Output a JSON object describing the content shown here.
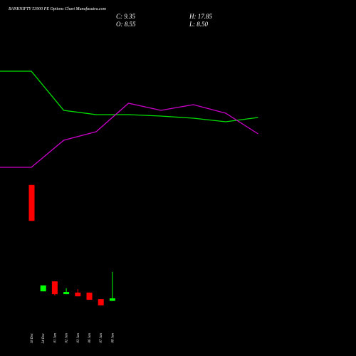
{
  "chart_data": [
    {
      "type": "candlestick",
      "title": "BANKNIFTY 53900 PE Options Chart Munafasutra.com",
      "annotations": [
        "C: 9.35",
        "H: 17.85",
        "O: 8.55",
        "L: 8.50"
      ],
      "categories": [
        "18 Dec",
        "24 Dec",
        "01 Jan",
        "02 Jan",
        "03 Jan",
        "06 Jan",
        "07 Jan",
        "08 Jan"
      ],
      "open": [
        45.7,
        11.6,
        14.8,
        10.7,
        11.2,
        11.2,
        9.1,
        8.55
      ],
      "high": [
        45.7,
        13.5,
        14.8,
        12.6,
        12.3,
        11.2,
        9.1,
        17.85
      ],
      "low": [
        34.2,
        11.6,
        10.3,
        10.7,
        10.0,
        8.9,
        7.1,
        8.5
      ],
      "close": [
        34.2,
        13.5,
        10.7,
        11.4,
        10.0,
        8.9,
        7.1,
        9.35
      ],
      "up_color": "#00ff00",
      "down_color": "#ff0000",
      "ylim": [
        0,
        105
      ]
    },
    {
      "type": "line",
      "series": [
        {
          "name": "Green line",
          "color": "#00e000",
          "values": [
            400,
            400,
            345,
            339,
            339,
            337,
            334,
            329,
            335
          ]
        },
        {
          "name": "Magenta line",
          "color": "#cc00cc",
          "values": [
            265,
            265,
            303,
            315,
            355,
            345,
            353,
            341,
            312
          ]
        }
      ],
      "ylim": [
        0,
        500
      ]
    }
  ]
}
